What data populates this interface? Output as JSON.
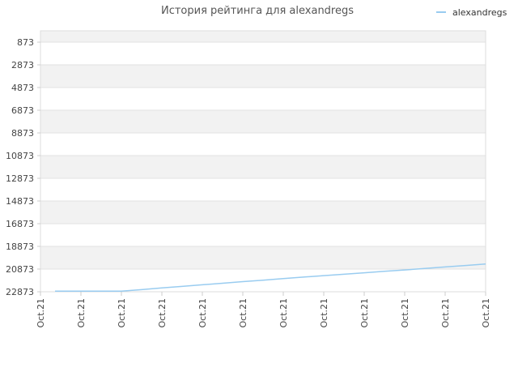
{
  "chart_data": {
    "type": "line",
    "title": "История рейтинга для alexandregs",
    "xlabel": "",
    "ylabel": "",
    "y_inverted": true,
    "ylim": [
      873,
      22873
    ],
    "y_ticks": [
      873,
      2873,
      4873,
      6873,
      8873,
      10873,
      12873,
      14873,
      16873,
      18873,
      20873,
      22873
    ],
    "x_tick_labels": [
      "Oct.21",
      "Oct.21",
      "Oct.21",
      "Oct.21",
      "Oct.21",
      "Oct.21",
      "Oct.21",
      "Oct.21",
      "Oct.21",
      "Oct.21",
      "Oct.21",
      "Oct.21"
    ],
    "grid": true,
    "legend_position": "top-right",
    "series": [
      {
        "name": "alexandregs",
        "color": "#99ccf0",
        "x_index": [
          0.36,
          1,
          1.5,
          2,
          2.5,
          3,
          3.5,
          4,
          4.5,
          5,
          5.5,
          6,
          6.5,
          7,
          7.5,
          8,
          8.5,
          9,
          9.5,
          10,
          10.5,
          11
        ],
        "values": [
          22873,
          22873,
          22873,
          22840,
          22690,
          22540,
          22400,
          22260,
          22120,
          21980,
          21850,
          21710,
          21580,
          21450,
          21330,
          21200,
          21070,
          20950,
          20820,
          20690,
          20560,
          20430
        ]
      }
    ]
  }
}
